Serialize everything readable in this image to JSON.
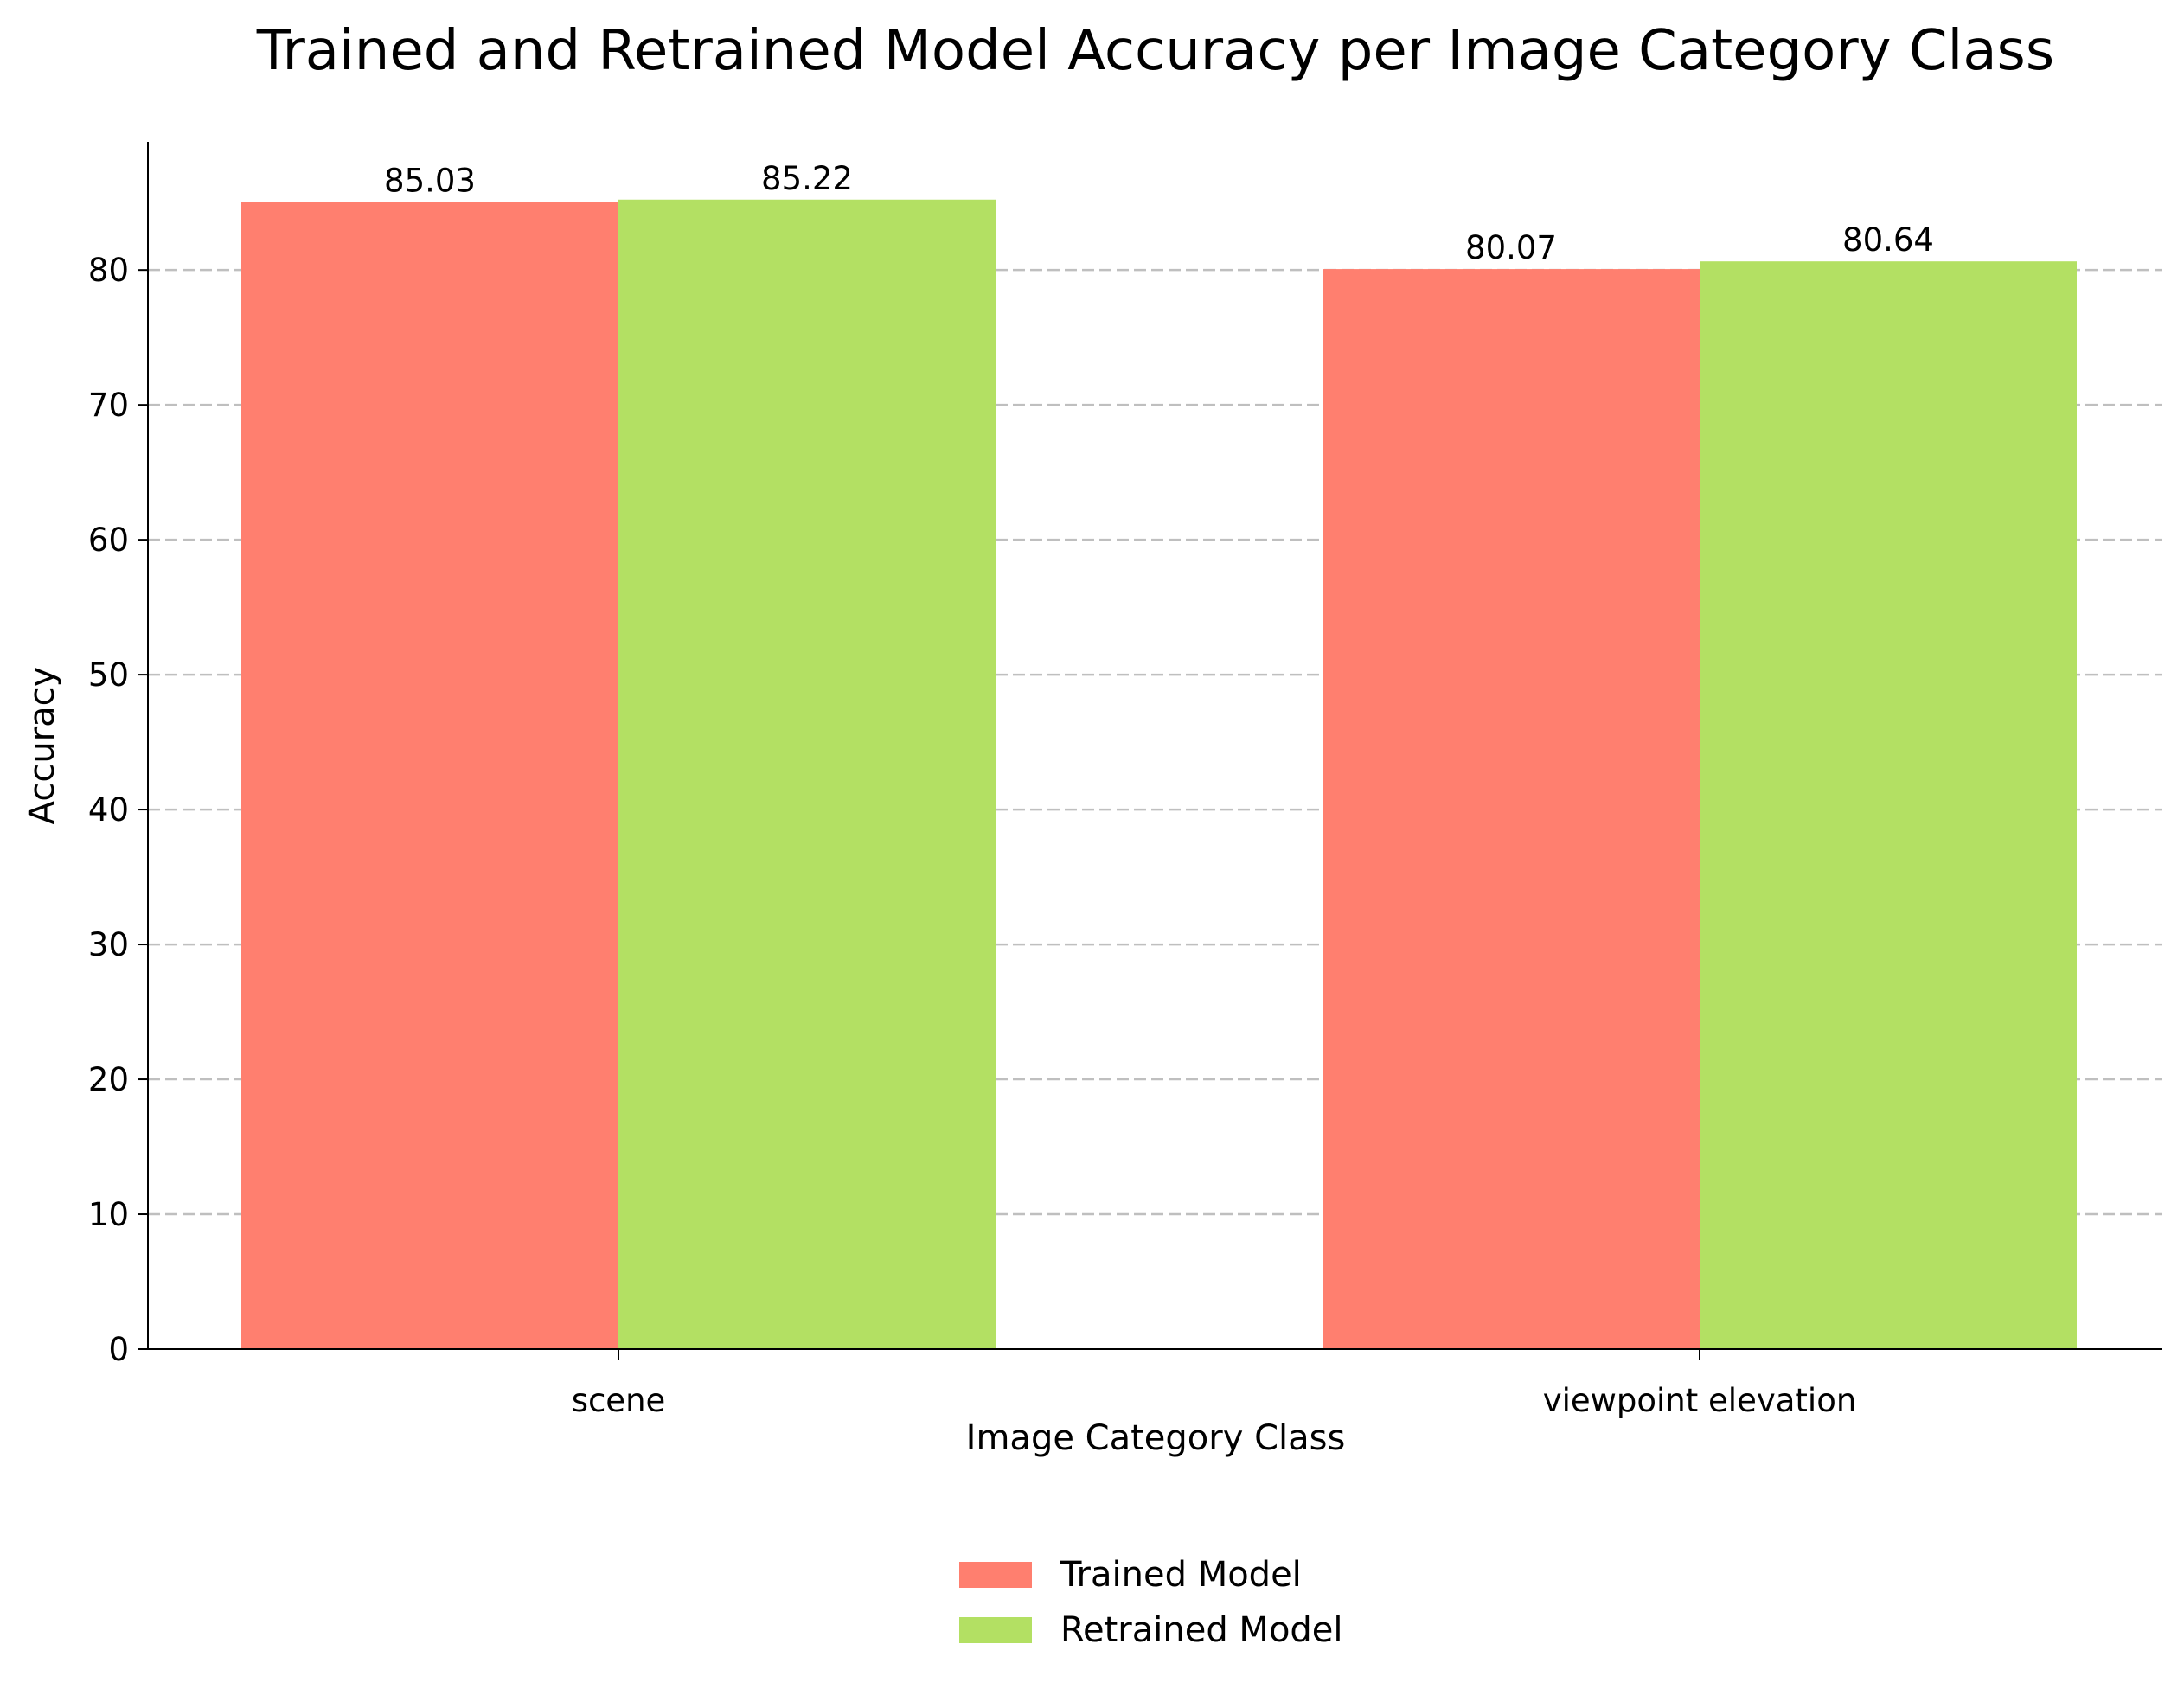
{
  "chart_data": {
    "type": "bar",
    "title": "Trained and Retrained Model Accuracy per Image Category Class",
    "xlabel": "Image Category Class",
    "ylabel": "Accuracy",
    "categories": [
      "scene",
      "viewpoint elevation"
    ],
    "series": [
      {
        "name": "Trained Model",
        "color": "#ff7f6f",
        "values": [
          85.03,
          80.07
        ],
        "labels": [
          "85.03",
          "80.07"
        ]
      },
      {
        "name": "Retrained Model",
        "color": "#b3e063",
        "values": [
          85.22,
          80.64
        ],
        "labels": [
          "85.22",
          "80.64"
        ]
      }
    ],
    "ylim": [
      0,
      89.5
    ],
    "yticks": [
      0,
      10,
      20,
      30,
      40,
      50,
      60,
      70,
      80
    ],
    "grid": "horizontal dashed",
    "legend_placement": "bottom-center"
  }
}
